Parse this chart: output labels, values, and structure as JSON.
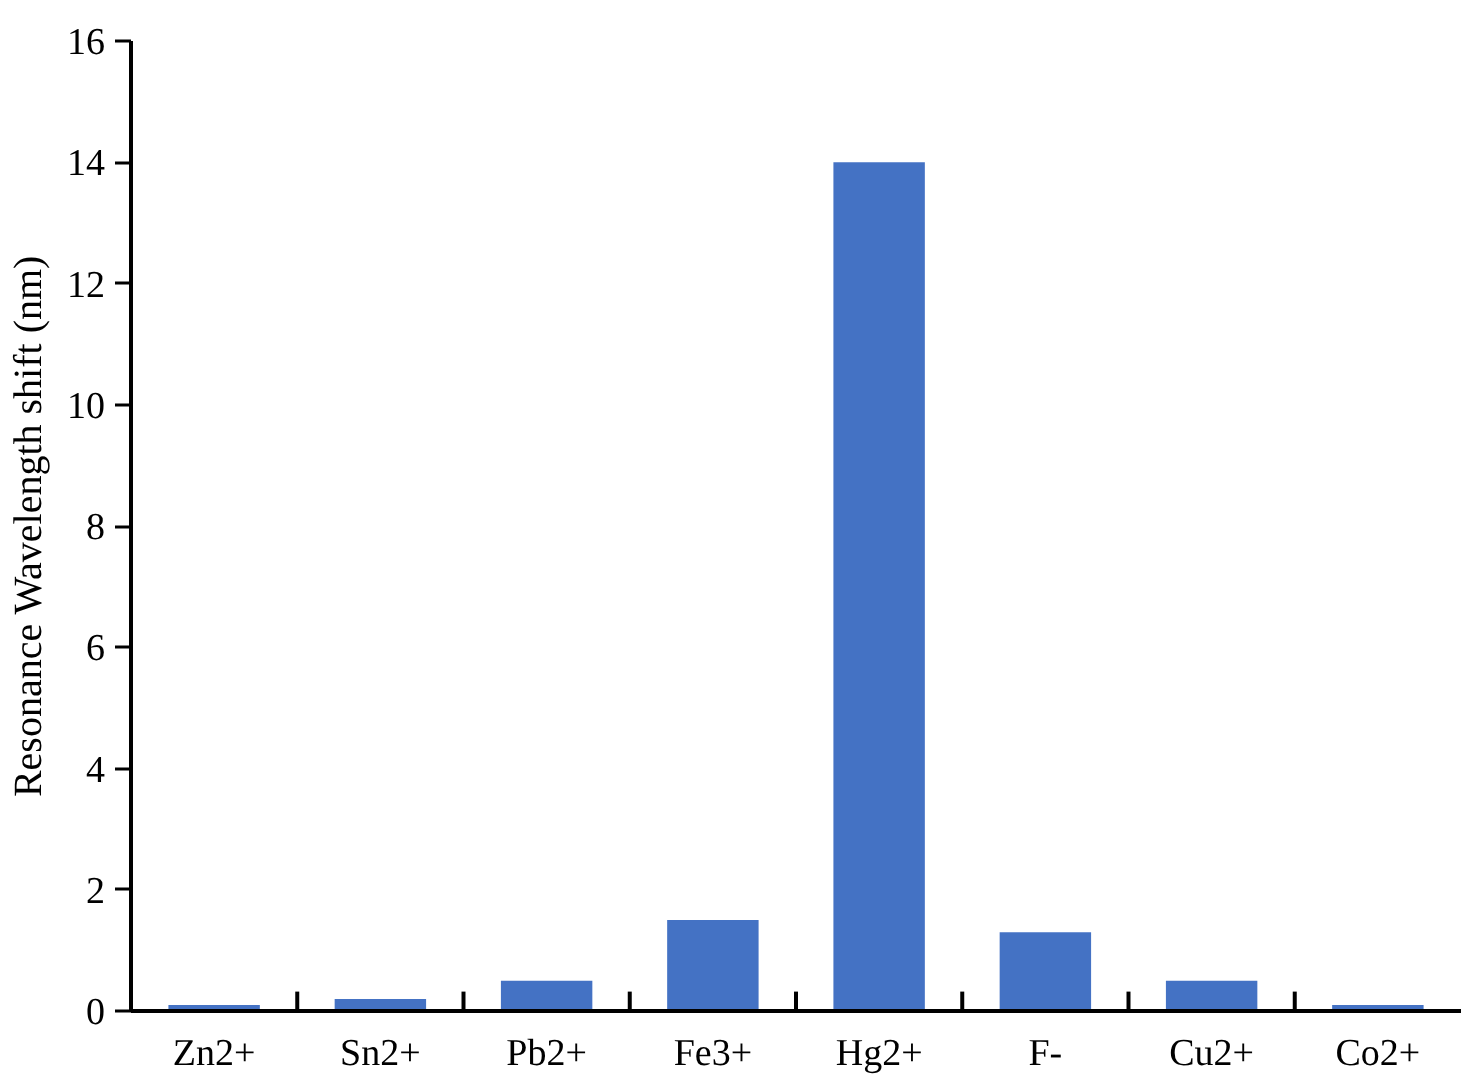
{
  "chart_data": {
    "type": "bar",
    "ylabel": "Resonance Wavelength shift (nm)",
    "categories": [
      "Zn2+",
      "Sn2+",
      "Pb2+",
      "Fe3+",
      "Hg2+",
      "F-",
      "Cu2+",
      "Co2+"
    ],
    "values": [
      0.1,
      0.2,
      0.5,
      1.5,
      14,
      1.3,
      0.5,
      0.1
    ],
    "color": "#4472c4",
    "ylim": [
      0,
      16
    ],
    "yticks": [
      0,
      2,
      4,
      6,
      8,
      10,
      12,
      14,
      16
    ],
    "grid": false
  }
}
